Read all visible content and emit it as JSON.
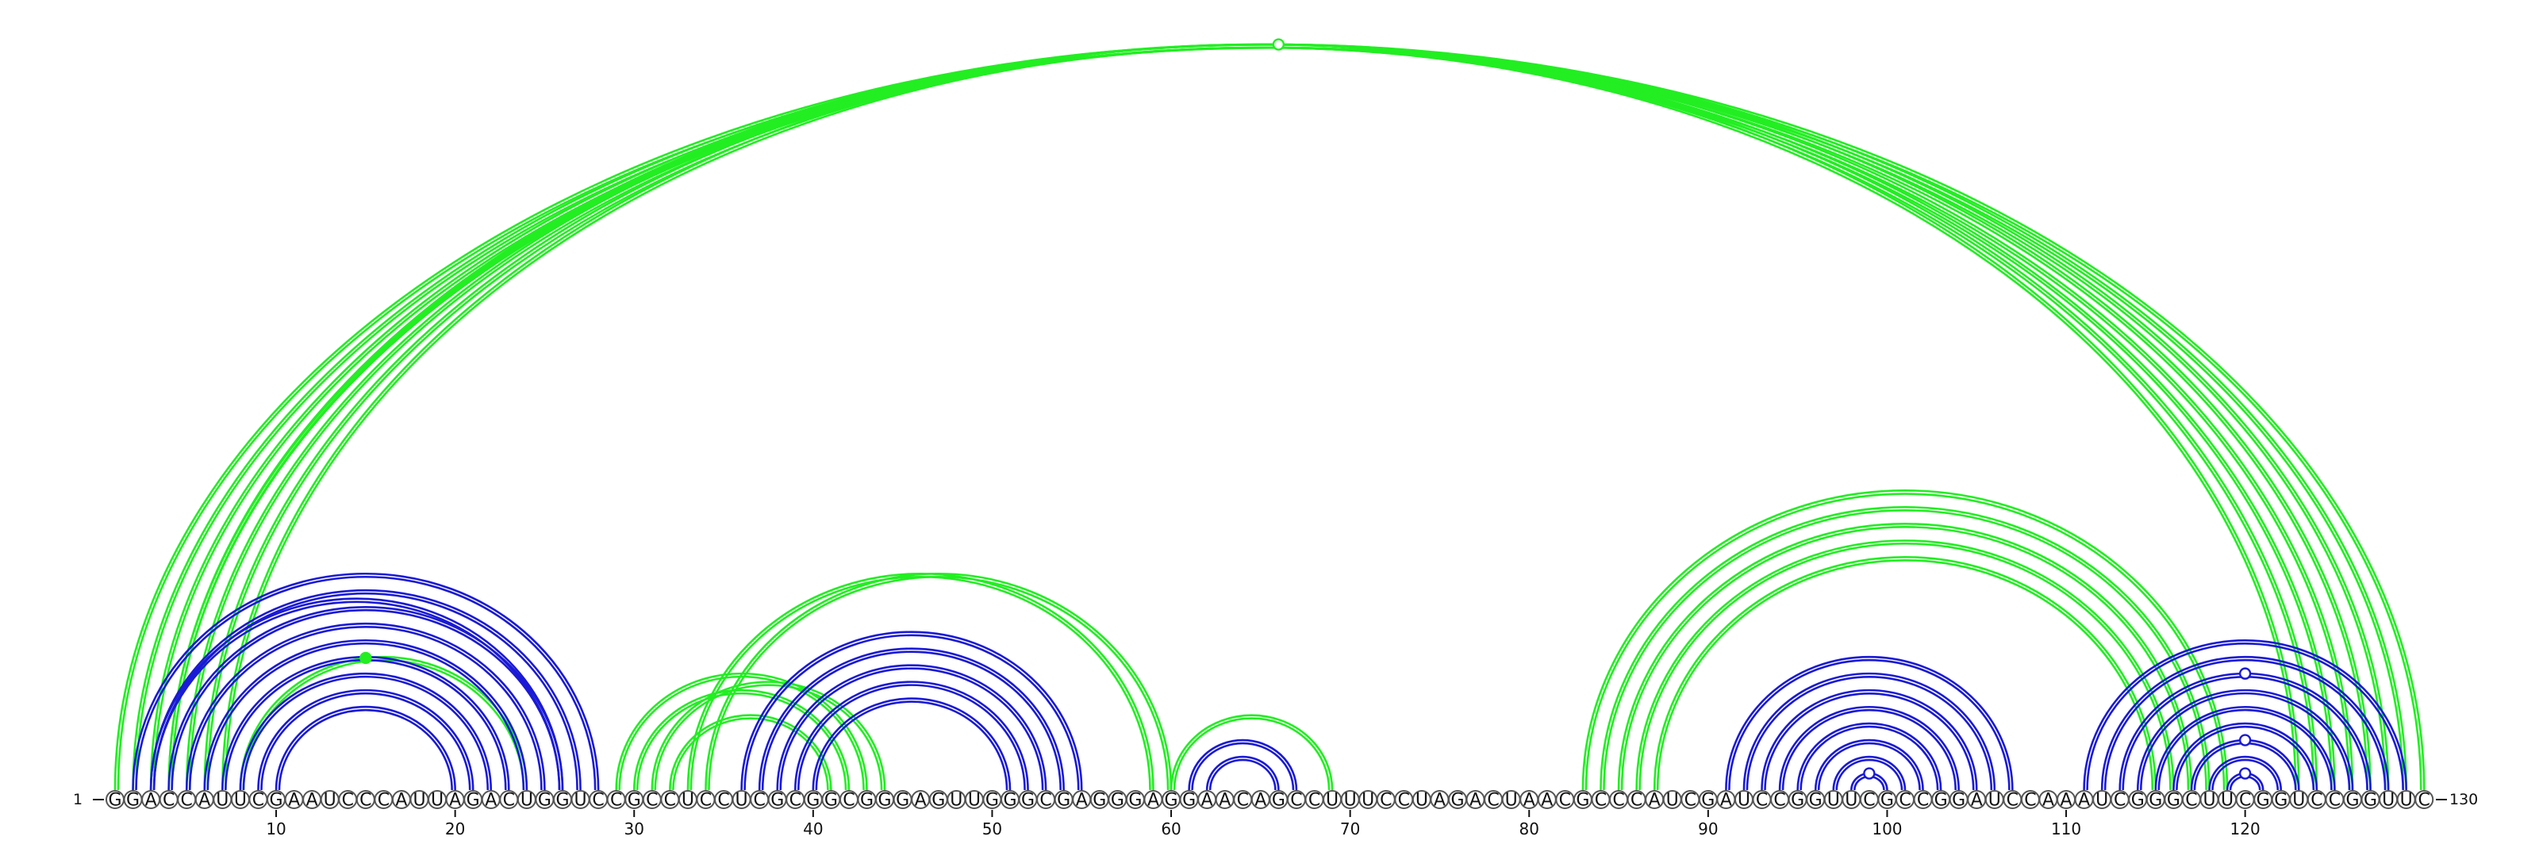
{
  "sequence": "GGACCAUUCGAAUCCCAUUAGACUGGUCCGCCUCCUCGCGGCGGGAGUUGGGCGAGGGAGGAACAGCCUUUCCUAGACUAACGCCCAUCGAUCCGGUUCGCCGGAUCCAAAUCGGGCUUCGGUCCGGUUC",
  "start_label": "1",
  "end_label": "130",
  "ticks": [
    10,
    20,
    30,
    40,
    50,
    60,
    70,
    80,
    90,
    100,
    110,
    120
  ],
  "colors": {
    "blue": "#1a1ad6",
    "green": "#22ee22"
  },
  "blue_arcs": [
    [
      2,
      28
    ],
    [
      3,
      27
    ],
    [
      3,
      26
    ],
    [
      4,
      26
    ],
    [
      5,
      25
    ],
    [
      6,
      24
    ],
    [
      7,
      23
    ],
    [
      8,
      22
    ],
    [
      9,
      21
    ],
    [
      10,
      20
    ],
    [
      36,
      55
    ],
    [
      37,
      54
    ],
    [
      38,
      53
    ],
    [
      39,
      52
    ],
    [
      40,
      51
    ],
    [
      61,
      67
    ],
    [
      62,
      66
    ],
    [
      91,
      107
    ],
    [
      92,
      106
    ],
    [
      93,
      105
    ],
    [
      94,
      104
    ],
    [
      95,
      103
    ],
    [
      96,
      102
    ],
    [
      97,
      101
    ],
    [
      98,
      100
    ],
    [
      111,
      129
    ],
    [
      112,
      128
    ],
    [
      113,
      127
    ],
    [
      114,
      126
    ],
    [
      115,
      125
    ],
    [
      116,
      124
    ],
    [
      117,
      123
    ],
    [
      118,
      122
    ],
    [
      119,
      121
    ]
  ],
  "green_arcs": [
    [
      1,
      130
    ],
    [
      2,
      129
    ],
    [
      3,
      128
    ],
    [
      4,
      127
    ],
    [
      4,
      126
    ],
    [
      5,
      125
    ],
    [
      6,
      124
    ],
    [
      7,
      123
    ],
    [
      8,
      24
    ],
    [
      29,
      43
    ],
    [
      30,
      42
    ],
    [
      31,
      44
    ],
    [
      32,
      41
    ],
    [
      33,
      59
    ],
    [
      34,
      60
    ],
    [
      60,
      69
    ],
    [
      83,
      119
    ],
    [
      84,
      118
    ],
    [
      85,
      117
    ],
    [
      86,
      116
    ],
    [
      87,
      115
    ]
  ],
  "markers": [
    {
      "pos": 66,
      "color": "green",
      "filled": false,
      "arc": [
        1,
        130
      ]
    },
    {
      "pos": 15,
      "color": "green",
      "filled": true,
      "arc": [
        8,
        24
      ]
    },
    {
      "pos": 99,
      "color": "blue",
      "filled": false,
      "arc": [
        98,
        100
      ]
    },
    {
      "pos": 120,
      "color": "blue",
      "filled": false,
      "arc": [
        119,
        121
      ]
    },
    {
      "pos": 120,
      "color": "blue",
      "filled": false,
      "arc": [
        117,
        123
      ]
    },
    {
      "pos": 120,
      "color": "blue",
      "filled": false,
      "arc": [
        113,
        127
      ]
    }
  ]
}
